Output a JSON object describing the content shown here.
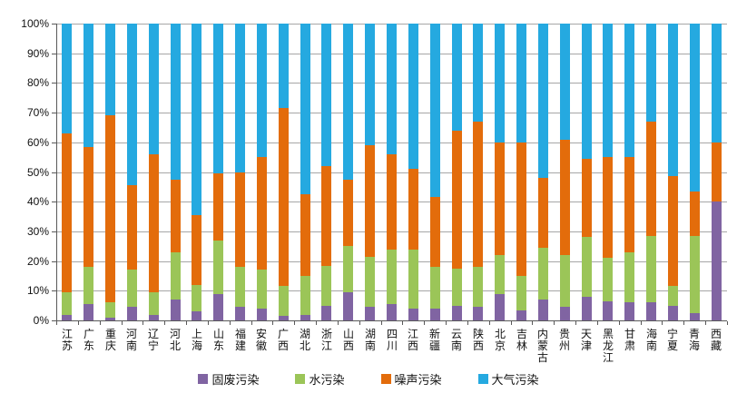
{
  "chart_data": {
    "type": "bar",
    "stacked": true,
    "units": "percent",
    "title": "",
    "xlabel": "",
    "ylabel": "",
    "ylim": [
      0,
      100
    ],
    "grid": true,
    "legend_position": "bottom",
    "yticks": [
      "100%",
      "90%",
      "80%",
      "70%",
      "60%",
      "50%",
      "40%",
      "30%",
      "20%",
      "10%",
      "0%"
    ],
    "categories": [
      "江苏",
      "广东",
      "重庆",
      "河南",
      "辽宁",
      "河北",
      "上海",
      "山东",
      "福建",
      "安徽",
      "广西",
      "湖北",
      "浙江",
      "山西",
      "湖南",
      "四川",
      "江西",
      "新疆",
      "云南",
      "陕西",
      "北京",
      "吉林",
      "内蒙古",
      "贵州",
      "天津",
      "黑龙江",
      "甘肃",
      "海南",
      "宁夏",
      "青海",
      "西藏"
    ],
    "series": [
      {
        "name": "固废污染",
        "color": "#8064A2",
        "values": [
          2,
          5.5,
          1,
          4.5,
          2,
          7,
          3,
          9,
          4.5,
          4,
          1.5,
          2,
          5,
          9.5,
          4.5,
          5.5,
          4,
          4,
          5,
          4.5,
          9,
          3.5,
          7,
          4.5,
          8,
          6.5,
          6,
          6,
          5,
          2.5,
          40
        ]
      },
      {
        "name": "水污染",
        "color": "#9BC558",
        "values": [
          7.5,
          12.5,
          5,
          12.5,
          7.5,
          16,
          9,
          18,
          13.5,
          13,
          10,
          13,
          13.5,
          15.5,
          17,
          18.5,
          20,
          14,
          12.5,
          13.5,
          13,
          11.5,
          17.5,
          17.5,
          20,
          14.5,
          17,
          22.5,
          6.5,
          26,
          0
        ]
      },
      {
        "name": "噪声污染",
        "color": "#E36C0B",
        "values": [
          53.5,
          40.5,
          63,
          28.5,
          46.5,
          24.5,
          23.5,
          22.5,
          32,
          38,
          60,
          27.5,
          33.5,
          22.5,
          37.5,
          32,
          27,
          23.5,
          46.5,
          49,
          38,
          45,
          23.5,
          39,
          26.5,
          34,
          32,
          38.5,
          37,
          15,
          20
        ]
      },
      {
        "name": "大气污染",
        "color": "#25A9E0",
        "values": [
          37,
          41.5,
          31,
          54.5,
          44,
          52.5,
          64.5,
          50.5,
          50,
          45,
          28.5,
          57.5,
          48,
          52.5,
          41,
          44,
          49,
          58.5,
          36,
          33,
          40,
          40,
          52,
          39,
          45.5,
          45,
          45,
          33,
          51.5,
          56.5,
          40
        ]
      }
    ]
  }
}
